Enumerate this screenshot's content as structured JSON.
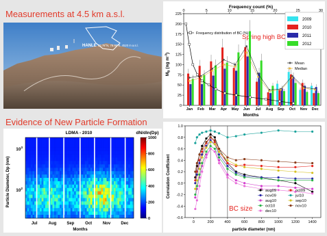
{
  "headings": {
    "measurements": "Measurements at 4.5 km a.s.l.",
    "npf": "Evidence of New Particle Formation"
  },
  "photo": {
    "site_label": "HANLE",
    "site_coords": "32.78°N, 78.95°E, 4520 m a.s.l."
  },
  "chart_data": [
    {
      "id": "bc-monthly",
      "type": "bar",
      "title": "",
      "top_axis_label": "Frequency count (%)",
      "top_axis_ticks": [
        0,
        5,
        10,
        15,
        20,
        25,
        30
      ],
      "xlabel": "Months",
      "ylabel": "M",
      "ylabel_sub": "B",
      "ylabel_unit": " (ng m",
      "ylabel_exp": "-3",
      "ylabel_close": ")",
      "ylim": [
        0,
        225
      ],
      "yticks": [
        0,
        25,
        50,
        75,
        100,
        125,
        150,
        175,
        200,
        225
      ],
      "categories": [
        "Jan",
        "Feb",
        "Mar",
        "Apr",
        "May",
        "Jun",
        "Jul",
        "Aug",
        "Sep",
        "Oct",
        "Nov",
        "Dec"
      ],
      "series": [
        {
          "name": "2009",
          "color": "#35e3ee",
          "values": [
            null,
            null,
            null,
            null,
            null,
            null,
            null,
            null,
            53,
            82,
            38,
            48
          ]
        },
        {
          "name": "2010",
          "color": "#e5221d",
          "values": [
            78,
            97,
            108,
            142,
            92,
            143,
            58,
            32,
            38,
            76,
            55,
            30
          ]
        },
        {
          "name": "2011",
          "color": "#2a2aa8",
          "values": [
            52,
            52,
            73,
            90,
            85,
            120,
            80,
            30,
            42,
            70,
            48,
            45
          ]
        },
        {
          "name": "2012",
          "color": "#36dc28",
          "values": [
            65,
            75,
            98,
            105,
            130,
            182,
            110,
            48,
            35,
            55,
            33,
            30
          ]
        }
      ],
      "mean": [
        68,
        72,
        90,
        112,
        100,
        145,
        78,
        38,
        40,
        72,
        45,
        40
      ],
      "median": [
        60,
        68,
        85,
        100,
        95,
        130,
        70,
        35,
        38,
        68,
        42,
        38
      ],
      "freq_line_label": "Frequency distribution of BC (%)",
      "freq_distribution": {
        "bc": [
          5,
          10,
          15,
          20,
          25,
          30,
          40,
          50,
          60,
          75,
          100,
          150,
          200
        ],
        "percent": [
          24,
          21,
          18,
          14.5,
          11.5,
          9,
          7,
          5.5,
          4,
          3,
          2,
          1.2,
          0.5
        ]
      },
      "mean_label": "Mean",
      "median_label": "Median",
      "annotation": "Spring high BC"
    },
    {
      "id": "ldma-heatmap",
      "type": "heatmap",
      "title": "LDMA - 2010",
      "colorbar_title": "dN/dln(Dp)",
      "colorbar_ticks": [
        0,
        200,
        400,
        600,
        800,
        1000
      ],
      "colorbar_range": [
        0,
        1000
      ],
      "xlabel": "Months",
      "ylabel": "Particle Diameter, Dp (nm)",
      "months": [
        "Jul",
        "Aug",
        "Sep",
        "Oct",
        "Nov",
        "Dec"
      ],
      "yticks": [
        "10",
        "10"
      ],
      "ytick_exps": [
        "3",
        "2"
      ]
    },
    {
      "id": "correlation",
      "type": "scatter",
      "title": "",
      "xlabel": "particle diameter (nm)",
      "ylabel": "Correlation Coefficient",
      "xlim": [
        -100,
        1500
      ],
      "ylim": [
        -0.6,
        1.0
      ],
      "xticks": [
        0,
        200,
        400,
        600,
        800,
        1000,
        1200,
        1400
      ],
      "yticks": [
        -0.6,
        -0.4,
        -0.2,
        0.0,
        0.2,
        0.4,
        0.6,
        0.8,
        1.0
      ],
      "annotation": "BC size",
      "marker_lines_x": [
        200,
        400
      ],
      "series": [
        {
          "name": "aug09",
          "color": "#000000",
          "x": [
            20,
            40,
            70,
            100,
            150,
            200,
            250,
            300,
            400,
            500,
            600,
            800,
            1000,
            1200,
            1400
          ],
          "y": [
            0.1,
            0.3,
            0.5,
            0.65,
            0.78,
            0.85,
            0.8,
            0.6,
            0.35,
            0.2,
            0.15,
            0.1,
            0.05,
            0.0,
            -0.15
          ]
        },
        {
          "name": "oct09",
          "color": "#e5221d",
          "x": [
            20,
            40,
            70,
            100,
            150,
            200,
            250,
            300,
            400,
            500,
            600,
            800,
            1000,
            1200,
            1400
          ],
          "y": [
            0.05,
            0.2,
            0.4,
            0.55,
            0.7,
            0.8,
            0.72,
            0.55,
            0.35,
            0.3,
            0.32,
            0.3,
            0.28,
            0.28,
            0.3
          ]
        },
        {
          "name": "nov09",
          "color": "#2a2aa8",
          "x": [
            20,
            40,
            70,
            100,
            150,
            200,
            250,
            300,
            400,
            500,
            600,
            800,
            1000,
            1200,
            1400
          ],
          "y": [
            0.0,
            0.15,
            0.35,
            0.5,
            0.65,
            0.75,
            0.68,
            0.5,
            0.3,
            0.18,
            0.12,
            0.1,
            0.1,
            0.08,
            0.08
          ]
        },
        {
          "name": "jul10",
          "color": "#1ba39c",
          "x": [
            20,
            40,
            70,
            100,
            150,
            200,
            250,
            300,
            400,
            500,
            600,
            800,
            1000,
            1200,
            1400
          ],
          "y": [
            0.7,
            0.8,
            0.85,
            0.88,
            0.9,
            0.92,
            0.9,
            0.87,
            0.8,
            0.82,
            0.85,
            0.88,
            0.92,
            0.9,
            0.9
          ]
        },
        {
          "name": "aug10",
          "color": "#d23ccd",
          "x": [
            20,
            40,
            70,
            100,
            150,
            200,
            250,
            300,
            400,
            500,
            600,
            800,
            1000,
            1200,
            1400
          ],
          "y": [
            -0.25,
            -0.1,
            0.1,
            0.3,
            0.5,
            0.6,
            0.55,
            0.4,
            0.15,
            0.05,
            0.0,
            -0.05,
            -0.05,
            -0.08,
            -0.1
          ]
        },
        {
          "name": "sep10",
          "color": "#d6c020",
          "x": [
            20,
            40,
            70,
            100,
            150,
            200,
            250,
            300,
            400,
            500,
            600,
            800,
            1000,
            1200,
            1400
          ],
          "y": [
            -0.1,
            0.05,
            0.25,
            0.45,
            0.62,
            0.72,
            0.68,
            0.55,
            0.4,
            0.32,
            0.28,
            0.25,
            0.22,
            0.2,
            0.18
          ]
        },
        {
          "name": "oct10",
          "color": "#2bb34a",
          "x": [
            20,
            40,
            70,
            100,
            150,
            200,
            250,
            300,
            400,
            500,
            600,
            800,
            1000,
            1200,
            1400
          ],
          "y": [
            -0.2,
            -0.05,
            0.15,
            0.35,
            0.55,
            0.65,
            0.6,
            0.45,
            0.25,
            0.15,
            0.1,
            0.08,
            0.05,
            0.05,
            0.05
          ]
        },
        {
          "name": "nov10",
          "color": "#8a3c1a",
          "x": [
            20,
            40,
            70,
            100,
            150,
            200,
            250,
            300,
            400,
            500,
            600,
            800,
            1000,
            1200,
            1400
          ],
          "y": [
            0.2,
            0.35,
            0.5,
            0.6,
            0.72,
            0.8,
            0.75,
            0.6,
            0.45,
            0.4,
            0.42,
            0.4,
            0.38,
            0.36,
            0.35
          ]
        },
        {
          "name": "dec10",
          "color": "#e86bd8",
          "x": [
            20,
            40,
            70,
            100,
            150,
            200,
            250,
            300,
            400,
            500,
            600,
            800,
            1000,
            1200,
            1400
          ],
          "y": [
            -0.45,
            -0.3,
            -0.05,
            0.2,
            0.45,
            0.6,
            0.55,
            0.35,
            0.1,
            0.0,
            -0.05,
            -0.1,
            -0.12,
            -0.15,
            -0.18
          ]
        }
      ]
    }
  ]
}
